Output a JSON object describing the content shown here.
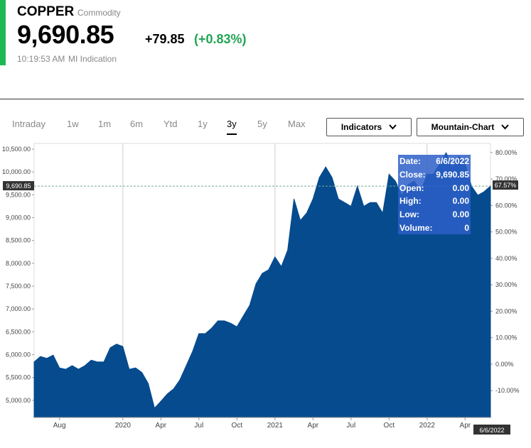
{
  "header": {
    "symbol": "COPPER",
    "kind": "Commodity",
    "price": "9,690.85",
    "change": "+79.85",
    "change_pct": "(+0.83%)",
    "time": "10:19:53 AM",
    "source": "MI Indication"
  },
  "tabs": {
    "items": [
      "Intraday",
      "1w",
      "1m",
      "6m",
      "Ytd",
      "1y",
      "3y",
      "5y",
      "Max"
    ],
    "active": 6
  },
  "buttons": [
    "Indicators",
    "Mountain-Chart"
  ],
  "tooltip": [
    [
      "Date:",
      "6/6/2022"
    ],
    [
      "Close:",
      "9,690.85"
    ],
    [
      "Open:",
      "0.00"
    ],
    [
      "High:",
      "0.00"
    ],
    [
      "Low:",
      "0.00"
    ],
    [
      "Volume:",
      "0"
    ]
  ],
  "chart_data": {
    "type": "area",
    "categories": [
      null,
      null,
      null,
      null,
      "Aug",
      null,
      null,
      null,
      null,
      null,
      null,
      null,
      null,
      null,
      "2020",
      null,
      null,
      null,
      null,
      null,
      "Apr",
      null,
      null,
      null,
      null,
      null,
      "Jul",
      null,
      null,
      null,
      null,
      null,
      "Oct",
      null,
      null,
      null,
      null,
      null,
      "2021",
      null,
      null,
      null,
      null,
      null,
      "Apr",
      null,
      null,
      null,
      null,
      null,
      "Jul",
      null,
      null,
      null,
      null,
      null,
      "Oct",
      null,
      null,
      null,
      null,
      null,
      "2022",
      null,
      null,
      null,
      null,
      null,
      "Apr",
      null,
      null,
      null,
      null
    ],
    "series": [
      {
        "name": "COPPER",
        "color": "#054b8e",
        "values": [
          5840,
          5960,
          5920,
          5990,
          5710,
          5680,
          5760,
          5680,
          5760,
          5880,
          5840,
          5840,
          6150,
          6230,
          6180,
          5680,
          5710,
          5610,
          5370,
          4830,
          4980,
          5140,
          5250,
          5450,
          5760,
          6070,
          6460,
          6460,
          6580,
          6740,
          6740,
          6690,
          6610,
          6850,
          7080,
          7550,
          7780,
          7860,
          8140,
          7930,
          8290,
          9410,
          8940,
          9100,
          9410,
          9880,
          10110,
          9880,
          9410,
          9330,
          9250,
          9690,
          9250,
          9330,
          9330,
          9100,
          9950,
          9800,
          9490,
          9720,
          9800,
          9570,
          9950,
          9950,
          10190,
          10420,
          10110,
          10340,
          10190,
          9690,
          9490,
          9570,
          9690.85
        ]
      }
    ],
    "ylim": [
      4625,
      10625
    ],
    "yticks": [
      {
        "value": 5000,
        "label": "5,000.00"
      },
      {
        "value": 5500,
        "label": "5,500.00"
      },
      {
        "value": 6000,
        "label": "6,000.00"
      },
      {
        "value": 6500,
        "label": "6,500.00"
      },
      {
        "value": 7000,
        "label": "7,000.00"
      },
      {
        "value": 7500,
        "label": "7,500.00"
      },
      {
        "value": 8000,
        "label": "8,000.00"
      },
      {
        "value": 8500,
        "label": "8,500.00"
      },
      {
        "value": 9000,
        "label": "9,000.00"
      },
      {
        "value": 9500,
        "label": "9,500.00"
      },
      {
        "value": 10000,
        "label": "10,000.00"
      },
      {
        "value": 10500,
        "label": "10,500.00"
      }
    ],
    "y2lim": [
      -20.15,
      83.44
    ],
    "y2ticks": [
      {
        "value": -10,
        "label": "-10.00%"
      },
      {
        "value": 0,
        "label": "0.00%"
      },
      {
        "value": 10,
        "label": "10.00%"
      },
      {
        "value": 20,
        "label": "20.00%"
      },
      {
        "value": 30,
        "label": "30.00%"
      },
      {
        "value": 40,
        "label": "40.00%"
      },
      {
        "value": 50,
        "label": "50.00%"
      },
      {
        "value": 60,
        "label": "60.00%"
      },
      {
        "value": 70,
        "label": "70.00%"
      },
      {
        "value": 80,
        "label": "80.00%"
      }
    ],
    "last": {
      "value": 9690.85,
      "label": "9,690.85",
      "pct": 67.57,
      "pct_label": "67.57%"
    },
    "crosshair_date": "6/6/2022",
    "year_lines": [
      14,
      38,
      62
    ]
  }
}
